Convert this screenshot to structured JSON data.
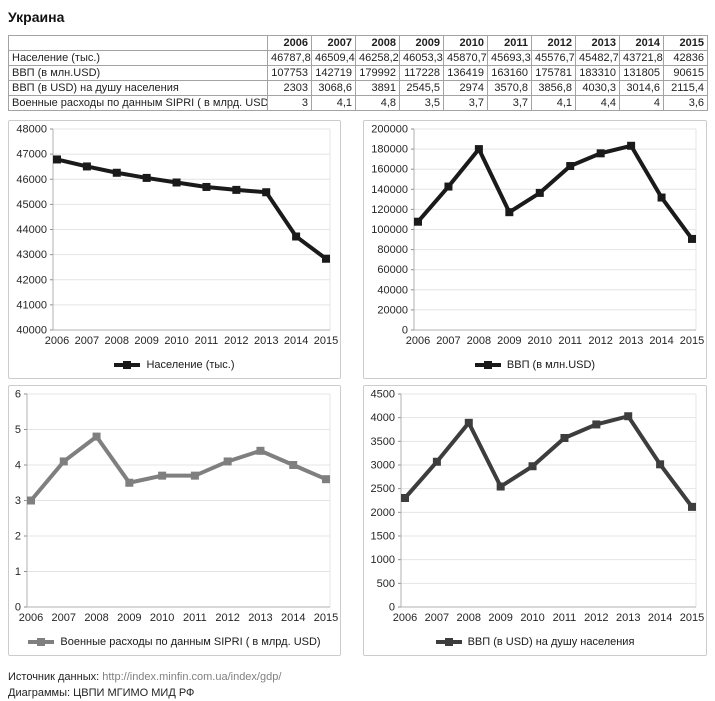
{
  "page": {
    "title": "Украина"
  },
  "table": {
    "col_headers": [
      "",
      "2006",
      "2007",
      "2008",
      "2009",
      "2010",
      "2011",
      "2012",
      "2013",
      "2014",
      "2015"
    ],
    "rows": [
      {
        "label": "Население (тыс.)",
        "values": [
          "46787,8",
          "46509,4",
          "46258,2",
          "46053,3",
          "45870,7",
          "45693,3",
          "45576,7",
          "45482,7",
          "43721,8",
          "42836"
        ]
      },
      {
        "label": "ВВП  (в млн.USD)",
        "values": [
          "107753",
          "142719",
          "179992",
          "117228",
          "136419",
          "163160",
          "175781",
          "183310",
          "131805",
          "90615"
        ]
      },
      {
        "label": "ВВП (в USD) на душу населения",
        "values": [
          "2303",
          "3068,6",
          "3891",
          "2545,5",
          "2974",
          "3570,8",
          "3856,8",
          "4030,3",
          "3014,6",
          "2115,4"
        ]
      },
      {
        "label": "Военные расходы по данным SIPRI ( в млрд. USD)",
        "values": [
          "3",
          "4,1",
          "4,8",
          "3,5",
          "3,7",
          "3,7",
          "4,1",
          "4,4",
          "4",
          "3,6"
        ]
      }
    ]
  },
  "chart_data": [
    {
      "type": "line",
      "legend": "Население (тыс.)",
      "categories": [
        "2006",
        "2007",
        "2008",
        "2009",
        "2010",
        "2011",
        "2012",
        "2013",
        "2014",
        "2015"
      ],
      "values": [
        46787.8,
        46509.4,
        46258.2,
        46053.3,
        45870.7,
        45693.3,
        45576.7,
        45482.7,
        43721.8,
        42836
      ],
      "ylim": [
        40000,
        48000
      ],
      "ytick_step": 1000,
      "color": "#1a1a1a",
      "grid": true,
      "legend_position": "bottom"
    },
    {
      "type": "line",
      "legend": "ВВП  (в млн.USD)",
      "categories": [
        "2006",
        "2007",
        "2008",
        "2009",
        "2010",
        "2011",
        "2012",
        "2013",
        "2014",
        "2015"
      ],
      "values": [
        107753,
        142719,
        179992,
        117228,
        136419,
        163160,
        175781,
        183310,
        131805,
        90615
      ],
      "ylim": [
        0,
        200000
      ],
      "ytick_step": 20000,
      "color": "#1a1a1a",
      "grid": true,
      "legend_position": "bottom"
    },
    {
      "type": "line",
      "legend": "Военные расходы по данным SIPRI ( в млрд. USD)",
      "categories": [
        "2006",
        "2007",
        "2008",
        "2009",
        "2010",
        "2011",
        "2012",
        "2013",
        "2014",
        "2015"
      ],
      "values": [
        3,
        4.1,
        4.8,
        3.5,
        3.7,
        3.7,
        4.1,
        4.4,
        4,
        3.6
      ],
      "ylim": [
        0,
        6
      ],
      "ytick_step": 1,
      "color": "#7f7f7f",
      "grid": true,
      "legend_position": "bottom"
    },
    {
      "type": "line",
      "legend": "ВВП (в USD) на душу населения",
      "categories": [
        "2006",
        "2007",
        "2008",
        "2009",
        "2010",
        "2011",
        "2012",
        "2013",
        "2014",
        "2015"
      ],
      "values": [
        2303,
        3068.6,
        3891,
        2545.5,
        2974,
        3570.8,
        3856.8,
        4030.3,
        3014.6,
        2115.4
      ],
      "ylim": [
        0,
        4500
      ],
      "ytick_step": 500,
      "color": "#3d3d3d",
      "grid": true,
      "legend_position": "bottom"
    }
  ],
  "footer": {
    "source_label": "Источник данных:",
    "source_url": "http://index.minfin.com.ua/index/gdp/",
    "credit": "Диаграммы: ЦВПИ МГИМО МИД РФ"
  }
}
